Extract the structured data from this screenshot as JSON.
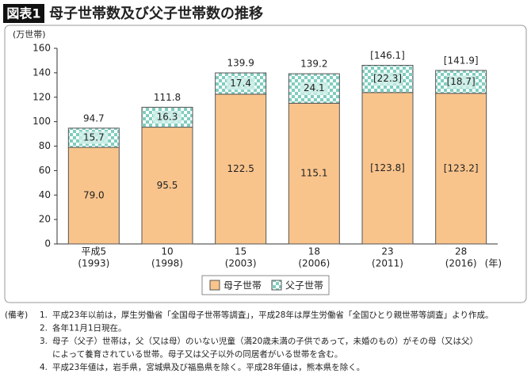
{
  "header": {
    "badge": "図表1",
    "title": "母子世帯数及び父子世帯数の推移"
  },
  "chart_data": {
    "type": "stacked_bar",
    "y_label": "(万世帯)",
    "categories": [
      "平成5",
      "10",
      "15",
      "18",
      "23",
      "28"
    ],
    "x_sublabels": [
      "(1993)",
      "(1998)",
      "(2003)",
      "(2006)",
      "(2011)",
      "(2016)"
    ],
    "x_unit": "(年)",
    "series": [
      {
        "name": "母子世帯",
        "color": "#f9c48c",
        "values": [
          79.0,
          95.5,
          122.5,
          115.1,
          123.8,
          123.2
        ],
        "value_labels": [
          "79.0",
          "95.5",
          "122.5",
          "115.1",
          "[123.8]",
          "[123.2]"
        ]
      },
      {
        "name": "父子世帯",
        "color": "#8ed2c6",
        "pattern": "checker",
        "values": [
          15.7,
          16.3,
          17.4,
          24.1,
          22.3,
          18.7
        ],
        "value_labels": [
          "15.7",
          "16.3",
          "17.4",
          "24.1",
          "[22.3]",
          "[18.7]"
        ]
      }
    ],
    "totals": {
      "values": [
        94.7,
        111.8,
        139.9,
        139.2,
        146.1,
        141.9
      ],
      "value_labels": [
        "94.7",
        "111.8",
        "139.9",
        "139.2",
        "[146.1]",
        "[141.9]"
      ]
    },
    "ylim": [
      0,
      160
    ],
    "yticks": [
      0,
      20,
      40,
      60,
      80,
      100,
      120,
      140,
      160
    ]
  },
  "notes": {
    "label": "(備考)",
    "items": [
      {
        "num": "1.",
        "lines": [
          "平成23年以前は，厚生労働省「全国母子世帯等調査」，平成28年は厚生労働省「全国ひとり親世帯等調査」より作成。"
        ]
      },
      {
        "num": "2.",
        "lines": [
          "各年11月1日現在。"
        ]
      },
      {
        "num": "3.",
        "lines": [
          "母子（父子）世帯は，父（又は母）のいない児童（満20歳未満の子供であって，未婚のもの）がその母（又は父）",
          "によって養育されている世帯。母子又は父子以外の同居者がいる世帯を含む。"
        ]
      },
      {
        "num": "4.",
        "lines": [
          "平成23年値は，岩手県，宮城県及び福島県を除く。平成28年値は，熊本県を除く。"
        ]
      }
    ]
  }
}
